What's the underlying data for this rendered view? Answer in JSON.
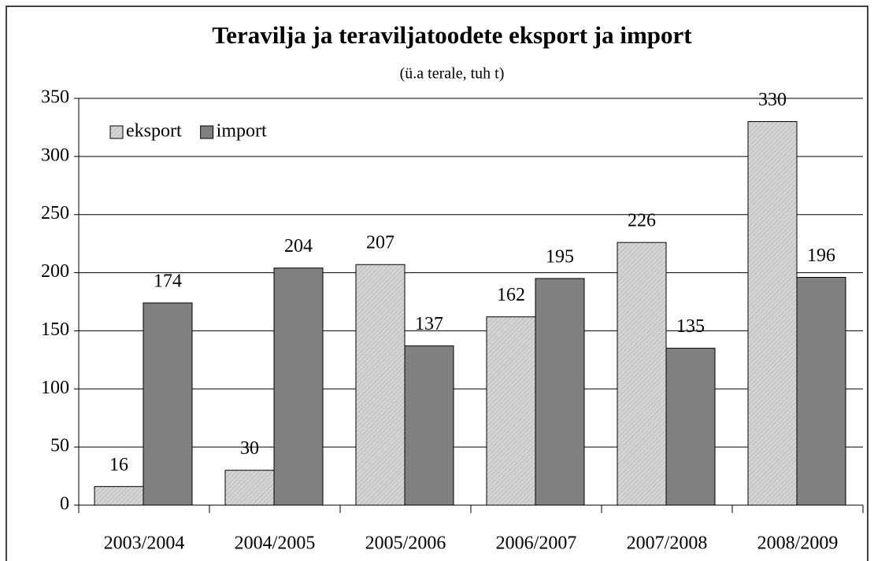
{
  "chart_data": {
    "type": "bar",
    "title": "Teravilja ja teraviljatoodete eksport ja import",
    "subtitle": "(ü.a terale, tuh t)",
    "categories": [
      "2003/2004",
      "2004/2005",
      "2005/2006",
      "2006/2007",
      "2007/2008",
      "2008/2009"
    ],
    "series": [
      {
        "name": "eksport",
        "color": "#d4d4d4",
        "values": [
          16,
          30,
          207,
          162,
          226,
          330
        ]
      },
      {
        "name": "import",
        "color": "#808080",
        "values": [
          174,
          204,
          137,
          195,
          135,
          196
        ]
      }
    ],
    "ylim": [
      0,
      350
    ],
    "yticks": [
      0,
      50,
      100,
      150,
      200,
      250,
      300,
      350
    ],
    "grid": true,
    "legend": "top-left"
  }
}
